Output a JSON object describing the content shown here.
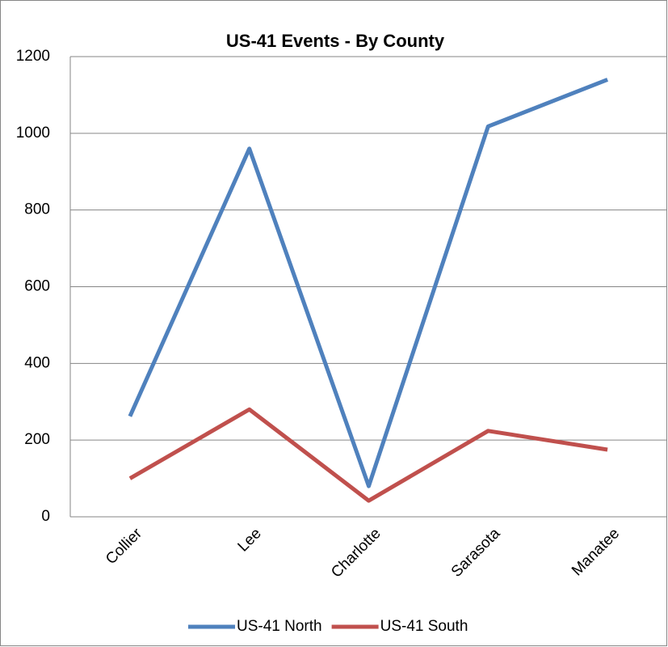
{
  "chart_data": {
    "type": "line",
    "title": "US-41 Events - By County",
    "categories": [
      "Collier",
      "Lee",
      "Charlotte",
      "Sarasota",
      "Manatee"
    ],
    "series": [
      {
        "name": "US-41 North",
        "color": "#4f81bd",
        "values": [
          262,
          960,
          80,
          1018,
          1140
        ]
      },
      {
        "name": "US-41 South",
        "color": "#c0504d",
        "values": [
          100,
          280,
          42,
          224,
          175
        ]
      }
    ],
    "ylim": [
      0,
      1200
    ],
    "yticks": [
      0,
      200,
      400,
      600,
      800,
      1000,
      1200
    ],
    "grid": true,
    "legend": "bottom"
  }
}
